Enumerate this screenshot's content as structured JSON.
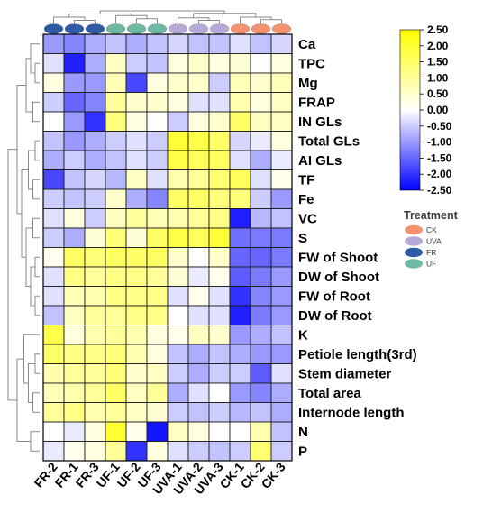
{
  "chart_data": {
    "type": "heatmap",
    "title": "",
    "columns": [
      "FR-2",
      "FR-1",
      "FR-3",
      "UF-1",
      "UF-2",
      "UF-3",
      "UVA-1",
      "UVA-2",
      "UVA-3",
      "CK-1",
      "CK-2",
      "CK-3"
    ],
    "column_groups": [
      "FR",
      "FR",
      "FR",
      "UF",
      "UF",
      "UF",
      "UVA",
      "UVA",
      "UVA",
      "CK",
      "CK",
      "CK"
    ],
    "rows": [
      "Ca",
      "TPC",
      "Mg",
      "FRAP",
      "IN GLs",
      "Total GLs",
      "AI GLs",
      "TF",
      "Fe",
      "VC",
      "S",
      "FW of Shoot",
      "DW of Shoot",
      "FW of Root",
      "DW of Root",
      "K",
      "Petiole length(3rd)",
      "Stem diameter",
      "Total area",
      "Internode length",
      "N",
      "P"
    ],
    "values": [
      [
        -1.0,
        -1.2,
        -0.8,
        -0.6,
        -0.8,
        -0.6,
        -0.4,
        -0.6,
        -0.6,
        -0.3,
        -0.6,
        -0.4
      ],
      [
        -0.3,
        -2.2,
        -0.8,
        0.6,
        -0.5,
        -0.6,
        0.3,
        0.5,
        0.3,
        0.4,
        0.0,
        0.3
      ],
      [
        0.3,
        -1.0,
        -1.0,
        0.7,
        -1.8,
        0.3,
        0.5,
        0.5,
        -0.5,
        0.7,
        0.5,
        0.7
      ],
      [
        -0.5,
        -1.5,
        -1.2,
        1.0,
        0.5,
        0.5,
        0.3,
        -0.3,
        -0.3,
        0.8,
        0.3,
        0.6
      ],
      [
        0.0,
        -1.0,
        -2.0,
        1.3,
        0.3,
        0.0,
        -0.5,
        0.3,
        0.5,
        1.5,
        0.6,
        0.6
      ],
      [
        -0.6,
        -1.0,
        -0.8,
        -0.5,
        -0.3,
        -0.5,
        2.0,
        1.8,
        1.5,
        -0.4,
        -0.2,
        0.3
      ],
      [
        -0.8,
        -0.5,
        -0.8,
        -0.6,
        -0.3,
        -0.5,
        1.8,
        1.6,
        1.6,
        -0.3,
        -0.8,
        -0.2
      ],
      [
        -1.8,
        -0.6,
        -0.4,
        -0.7,
        0.6,
        -0.3,
        0.8,
        1.0,
        1.4,
        1.6,
        -0.3,
        0.2
      ],
      [
        -0.5,
        -0.6,
        -0.5,
        0.5,
        -0.8,
        -1.2,
        1.5,
        1.5,
        1.3,
        1.3,
        -0.5,
        -1.0
      ],
      [
        -0.3,
        0.3,
        -0.5,
        0.6,
        1.0,
        0.7,
        0.8,
        1.0,
        1.2,
        -2.2,
        -0.7,
        -0.6
      ],
      [
        -0.5,
        -0.8,
        0.4,
        1.3,
        0.4,
        1.5,
        1.8,
        1.6,
        2.0,
        -1.4,
        -1.3,
        -1.3
      ],
      [
        0.2,
        1.5,
        1.3,
        1.5,
        1.5,
        1.5,
        0.5,
        0.0,
        0.5,
        -1.5,
        -1.5,
        -1.3
      ],
      [
        -0.3,
        1.2,
        1.0,
        1.2,
        1.2,
        1.0,
        0.4,
        -0.2,
        0.2,
        -1.6,
        -1.3,
        -1.0
      ],
      [
        -0.3,
        0.7,
        0.8,
        1.2,
        1.2,
        1.2,
        -0.3,
        0.2,
        -0.3,
        -2.0,
        -1.2,
        -1.0
      ],
      [
        -0.6,
        0.6,
        1.0,
        1.0,
        1.2,
        1.2,
        0.0,
        -0.3,
        -0.3,
        -2.2,
        -1.3,
        -1.0
      ],
      [
        1.8,
        0.3,
        0.8,
        1.0,
        0.8,
        0.3,
        0.2,
        0.6,
        0.5,
        -1.0,
        -0.8,
        -0.6
      ],
      [
        1.5,
        1.2,
        1.2,
        1.3,
        0.8,
        0.3,
        -0.6,
        -0.8,
        -0.6,
        -0.8,
        -1.0,
        -1.0
      ],
      [
        0.8,
        1.0,
        1.0,
        1.3,
        0.5,
        0.6,
        -0.5,
        -0.8,
        -0.5,
        -0.5,
        -1.6,
        -0.3
      ],
      [
        0.7,
        0.8,
        1.0,
        1.5,
        0.6,
        1.0,
        -0.8,
        -0.3,
        0.0,
        -1.0,
        -1.2,
        -0.8
      ],
      [
        1.0,
        1.2,
        0.8,
        1.0,
        0.6,
        0.4,
        -0.5,
        -0.6,
        -0.5,
        -0.7,
        -0.6,
        -0.8
      ],
      [
        0.0,
        -0.2,
        0.3,
        2.0,
        0.2,
        -2.3,
        0.6,
        0.3,
        0.0,
        0.0,
        0.8,
        -0.6
      ],
      [
        -0.2,
        0.2,
        0.3,
        1.0,
        -2.0,
        0.3,
        -0.3,
        -0.5,
        -0.6,
        -0.5,
        1.4,
        -0.5
      ]
    ],
    "color_scale": {
      "min": -2.5,
      "max": 2.5,
      "low": "#0000ff",
      "mid": "#ffffff",
      "high": "#ffff00"
    },
    "colorbar_ticks": [
      "2.50",
      "2.00",
      "1.50",
      "1.00",
      "0.50",
      "0.00",
      "-0.50",
      "-1.00",
      "-1.50",
      "-2.00",
      "-2.50"
    ],
    "legend": {
      "title": "Treatment",
      "entries": [
        {
          "label": "CK",
          "color": "#f2926e"
        },
        {
          "label": "UVA",
          "color": "#b7a9d6"
        },
        {
          "label": "FR",
          "color": "#2f5aa8"
        },
        {
          "label": "UF",
          "color": "#6fb9a4"
        }
      ]
    },
    "group_colors": {
      "FR": "#2f5aa8",
      "UF": "#6fb9a4",
      "UVA": "#b7a9d6",
      "CK": "#f2926e"
    }
  }
}
